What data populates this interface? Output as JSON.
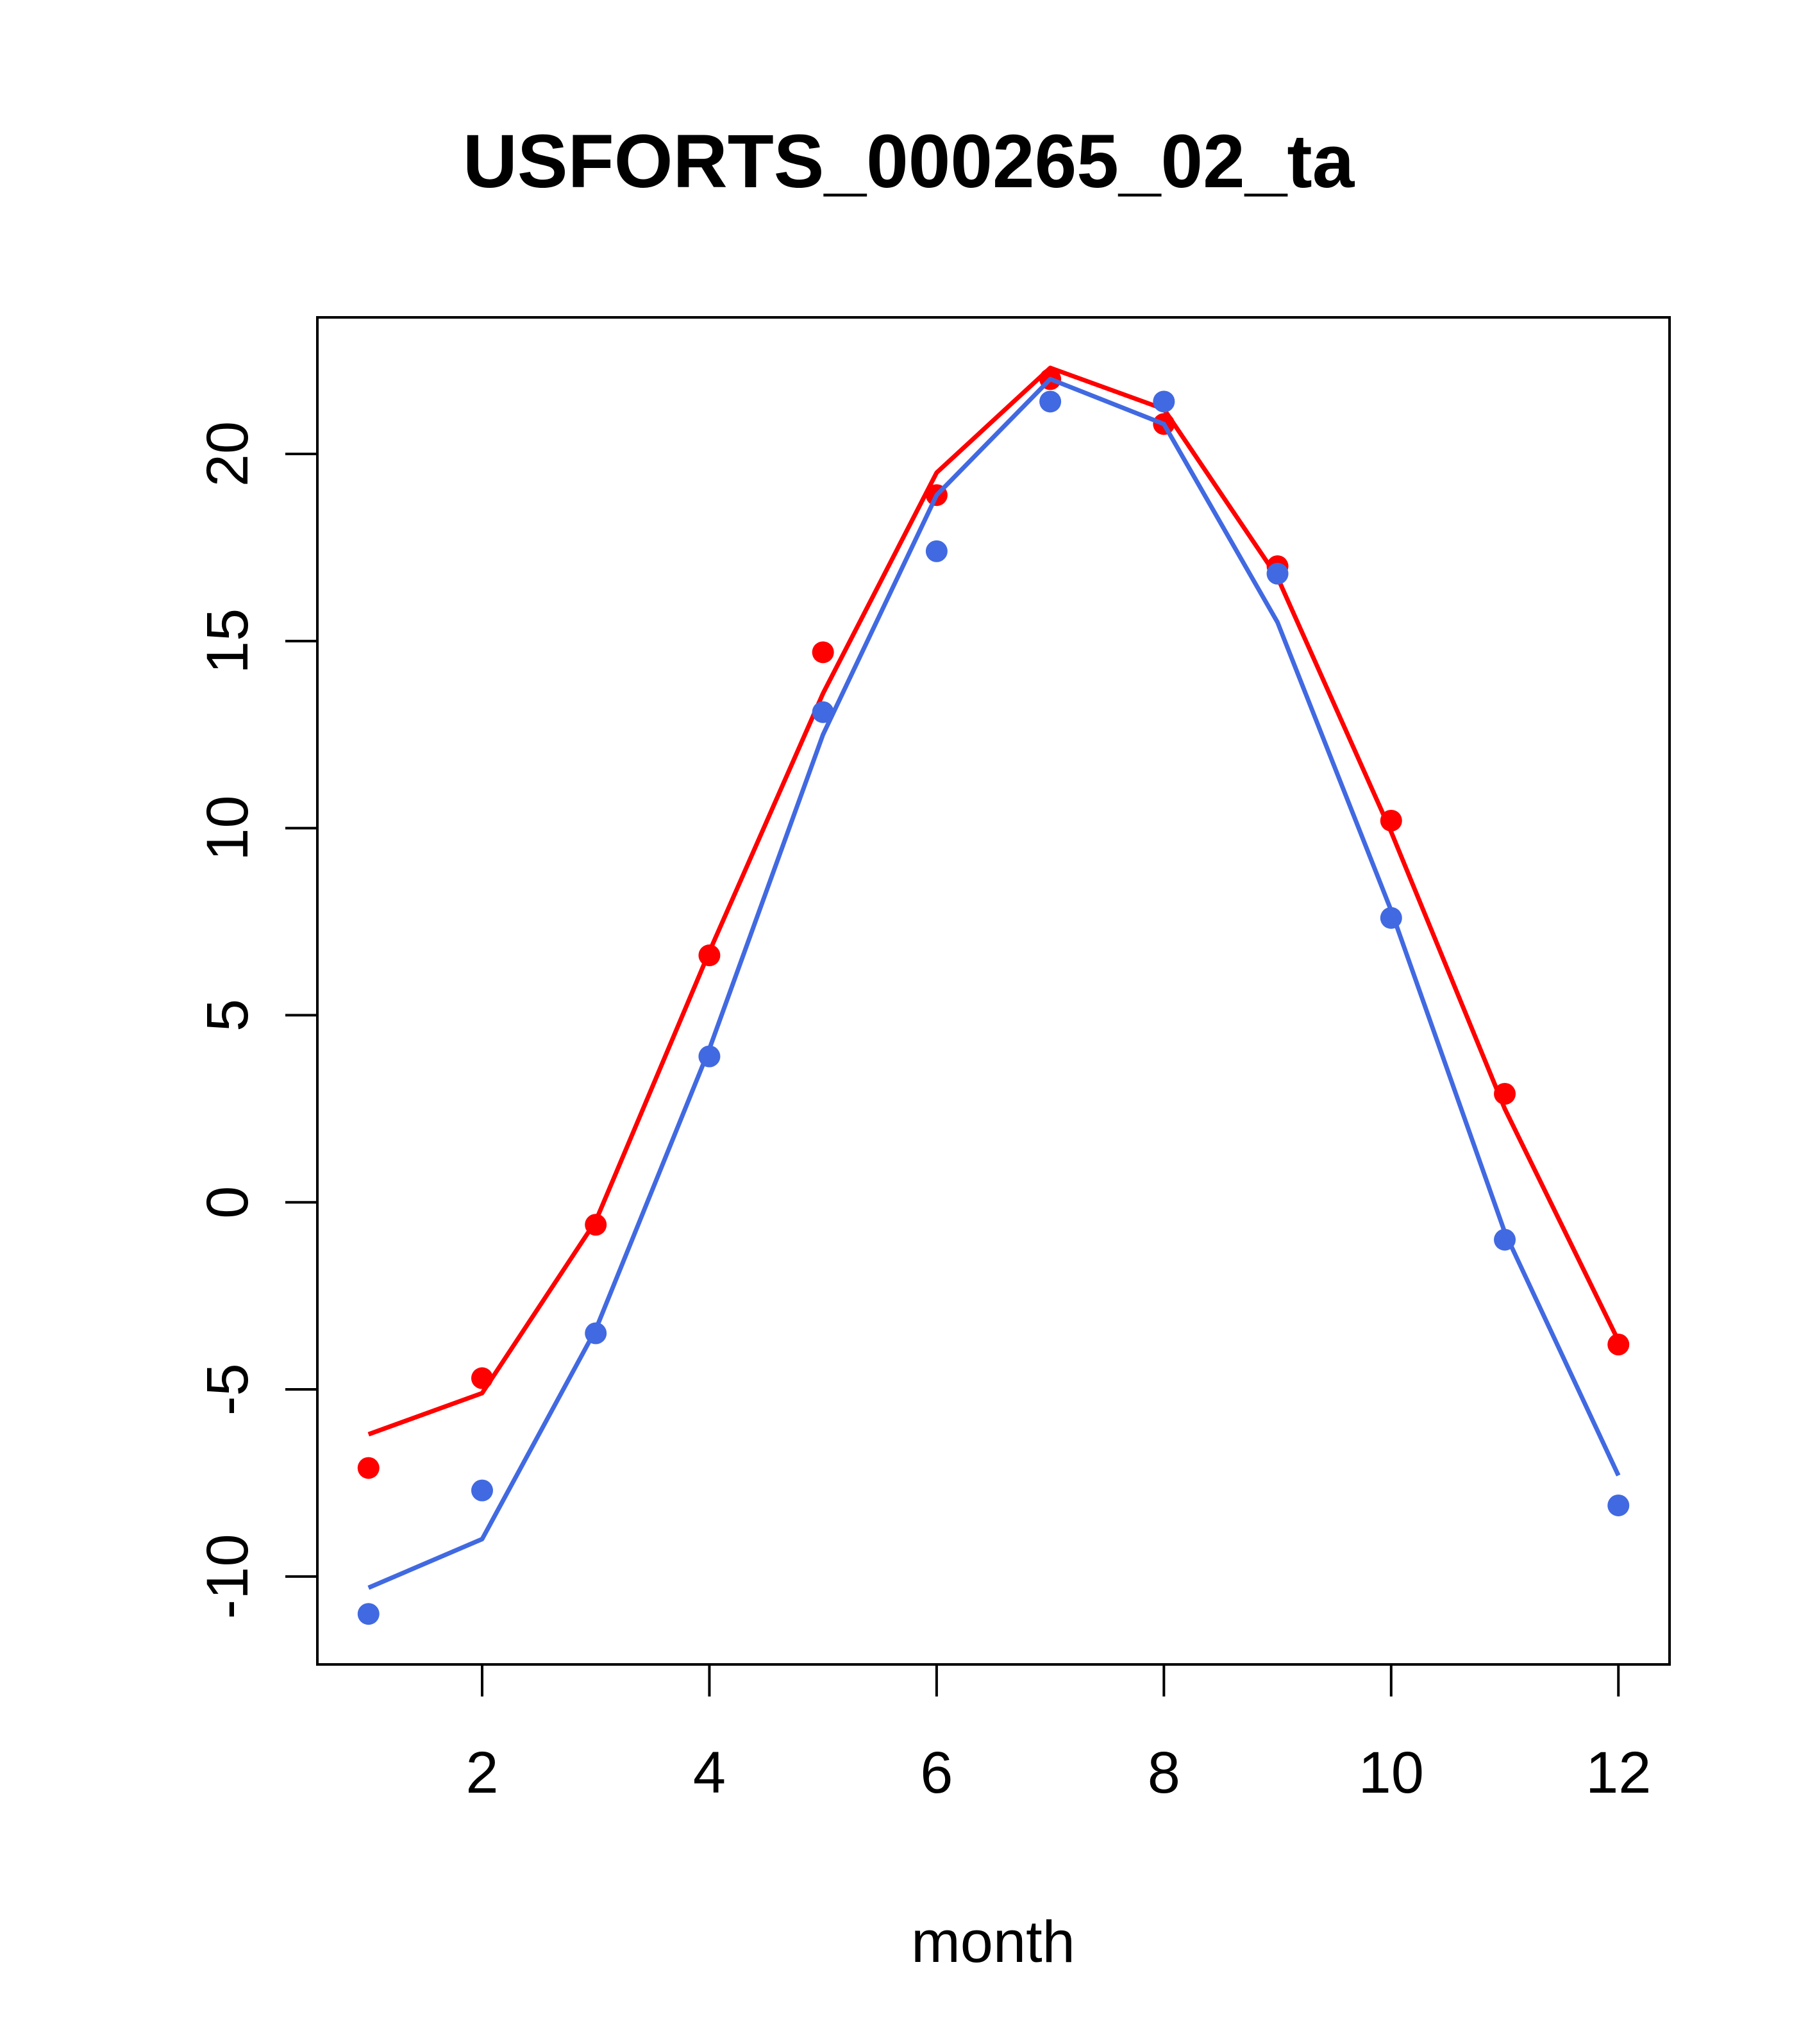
{
  "chart_data": {
    "type": "line",
    "title": "USFORTS_000265_02_ta",
    "xlabel": "month",
    "ylabel": "",
    "xlim": [
      0.55,
      12.45
    ],
    "ylim": [
      -12.35,
      23.65
    ],
    "x_ticks": [
      2,
      4,
      6,
      8,
      10,
      12
    ],
    "y_ticks": [
      -10,
      -5,
      0,
      5,
      10,
      15,
      20
    ],
    "grid": false,
    "legend": "none",
    "x": [
      1,
      2,
      3,
      4,
      5,
      6,
      7,
      8,
      9,
      10,
      11,
      12
    ],
    "series": [
      {
        "color": "#ff0000",
        "style": "line",
        "values": [
          -6.2,
          -5.1,
          -0.5,
          6.7,
          13.6,
          19.5,
          22.3,
          21.2,
          16.7,
          9.9,
          2.5,
          -3.7
        ]
      },
      {
        "color": "#ff0000",
        "style": "points",
        "values": [
          -7.1,
          -4.7,
          -0.6,
          6.6,
          14.7,
          18.9,
          22.0,
          20.8,
          17.0,
          10.2,
          2.9,
          -3.8
        ]
      },
      {
        "color": "#4169e1",
        "style": "line",
        "values": [
          -10.3,
          -9.0,
          -3.4,
          4.1,
          12.5,
          18.9,
          22.0,
          20.8,
          15.5,
          7.8,
          -0.8,
          -7.3
        ]
      },
      {
        "color": "#4169e1",
        "style": "points",
        "values": [
          -11.0,
          -7.7,
          -3.5,
          3.9,
          13.1,
          17.4,
          21.4,
          21.4,
          16.8,
          7.6,
          -1.0,
          -8.1
        ]
      }
    ]
  }
}
